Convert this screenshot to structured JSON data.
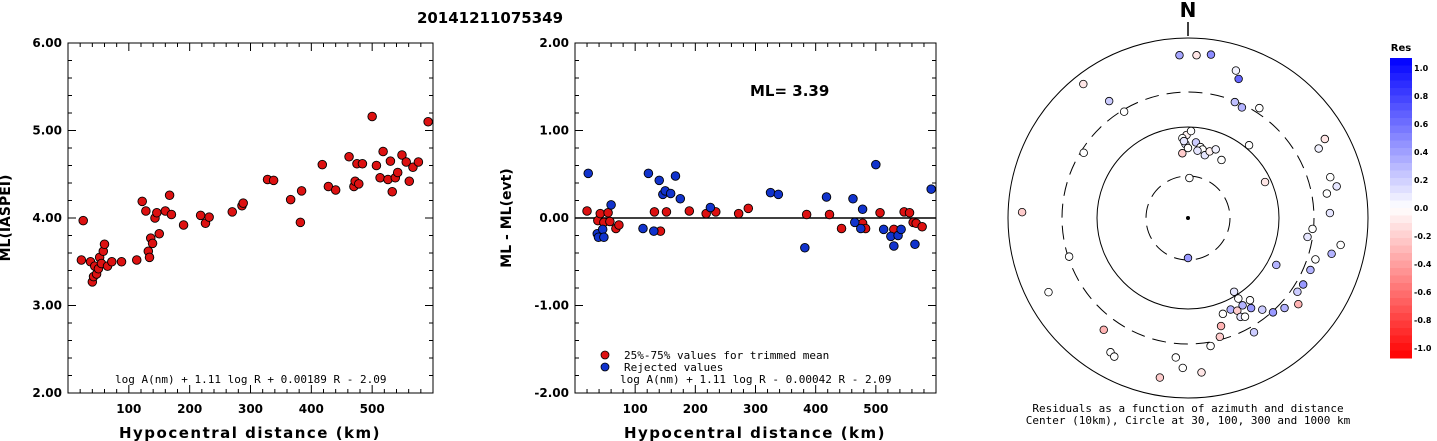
{
  "title": "20141211075349",
  "left_panel": {
    "ylabel": "ML(IASPEI)",
    "xlabel": "Hypocentral distance (km)",
    "formula": "log A(nm) + 1.11 log R + 0.00189 R - 2.09"
  },
  "middle_panel": {
    "ylabel": "ML - ML(evt)",
    "xlabel": "Hypocentral distance (km)",
    "ml_text": "ML= 3.39",
    "legend_trimmed": "25%-75% values for trimmed mean",
    "legend_rejected": "Rejected values",
    "formula": "log A(nm) + 1.11 log R - 0.00042 R - 2.09"
  },
  "polar_panel": {
    "north_label": "N",
    "caption_line1": "Residuals as a function of azimuth and distance",
    "caption_line2": "Center (10km), Circle at 30, 100, 300 and 1000 km"
  },
  "colorbar": {
    "title": "Res",
    "ticks": [
      "1.0",
      "0.8",
      "0.6",
      "0.4",
      "0.2",
      "0.0",
      "-0.2",
      "-0.4",
      "-0.6",
      "-0.8",
      "-1.0"
    ]
  },
  "chart_data": [
    {
      "type": "scatter",
      "title": "20141211075349",
      "xlabel": "Hypocentral distance (km)",
      "ylabel": "ML(IASPEI)",
      "xlim": [
        0,
        600
      ],
      "ylim": [
        2.0,
        6.0
      ],
      "x_ticks": [
        "100",
        "200",
        "300",
        "400",
        "500"
      ],
      "y_ticks": [
        "2.00",
        "3.00",
        "4.00",
        "5.00",
        "6.00"
      ],
      "color": "#dd1111",
      "points": [
        [
          22,
          3.52
        ],
        [
          25,
          3.97
        ],
        [
          37,
          3.5
        ],
        [
          40,
          3.27
        ],
        [
          42,
          3.33
        ],
        [
          44,
          3.45
        ],
        [
          47,
          3.36
        ],
        [
          50,
          3.42
        ],
        [
          52,
          3.55
        ],
        [
          55,
          3.48
        ],
        [
          58,
          3.62
        ],
        [
          60,
          3.7
        ],
        [
          65,
          3.45
        ],
        [
          72,
          3.5
        ],
        [
          88,
          3.5
        ],
        [
          113,
          3.52
        ],
        [
          122,
          4.19
        ],
        [
          128,
          4.08
        ],
        [
          132,
          3.62
        ],
        [
          134,
          3.55
        ],
        [
          136,
          3.77
        ],
        [
          139,
          3.71
        ],
        [
          143,
          4.0
        ],
        [
          146,
          4.06
        ],
        [
          150,
          3.82
        ],
        [
          160,
          4.08
        ],
        [
          167,
          4.26
        ],
        [
          170,
          4.04
        ],
        [
          190,
          3.92
        ],
        [
          218,
          4.03
        ],
        [
          226,
          3.94
        ],
        [
          232,
          4.01
        ],
        [
          270,
          4.07
        ],
        [
          286,
          4.14
        ],
        [
          288,
          4.17
        ],
        [
          328,
          4.44
        ],
        [
          338,
          4.43
        ],
        [
          366,
          4.21
        ],
        [
          382,
          3.95
        ],
        [
          384,
          4.31
        ],
        [
          418,
          4.61
        ],
        [
          428,
          4.36
        ],
        [
          440,
          4.32
        ],
        [
          462,
          4.7
        ],
        [
          470,
          4.36
        ],
        [
          472,
          4.42
        ],
        [
          475,
          4.62
        ],
        [
          478,
          4.39
        ],
        [
          484,
          4.62
        ],
        [
          500,
          5.16
        ],
        [
          507,
          4.6
        ],
        [
          513,
          4.46
        ],
        [
          518,
          4.76
        ],
        [
          526,
          4.44
        ],
        [
          530,
          4.65
        ],
        [
          533,
          4.3
        ],
        [
          538,
          4.46
        ],
        [
          542,
          4.52
        ],
        [
          549,
          4.72
        ],
        [
          556,
          4.64
        ],
        [
          561,
          4.42
        ],
        [
          567,
          4.58
        ],
        [
          576,
          4.64
        ],
        [
          592,
          5.1
        ]
      ]
    },
    {
      "type": "scatter",
      "xlabel": "Hypocentral distance (km)",
      "ylabel": "ML - ML(evt)",
      "xlim": [
        0,
        600
      ],
      "ylim": [
        -2.0,
        2.0
      ],
      "x_ticks": [
        "100",
        "200",
        "300",
        "400",
        "500"
      ],
      "y_ticks": [
        "-2.00",
        "-1.00",
        "0.00",
        "1.00",
        "2.00"
      ],
      "reference_line": 0.0,
      "series": [
        {
          "name": "25%-75% values for trimmed mean",
          "color": "#dd1111",
          "points": [
            [
              20,
              0.08
            ],
            [
              38,
              -0.03
            ],
            [
              42,
              0.05
            ],
            [
              48,
              -0.05
            ],
            [
              55,
              0.06
            ],
            [
              58,
              -0.04
            ],
            [
              68,
              -0.12
            ],
            [
              73,
              -0.08
            ],
            [
              132,
              0.07
            ],
            [
              142,
              -0.15
            ],
            [
              152,
              0.07
            ],
            [
              190,
              0.08
            ],
            [
              218,
              0.05
            ],
            [
              234,
              0.07
            ],
            [
              272,
              0.05
            ],
            [
              288,
              0.11
            ],
            [
              385,
              0.04
            ],
            [
              423,
              0.04
            ],
            [
              443,
              -0.12
            ],
            [
              478,
              -0.06
            ],
            [
              483,
              -0.12
            ],
            [
              507,
              0.06
            ],
            [
              530,
              -0.13
            ],
            [
              547,
              0.07
            ],
            [
              556,
              0.06
            ],
            [
              562,
              -0.05
            ],
            [
              567,
              -0.06
            ],
            [
              577,
              -0.1
            ]
          ]
        },
        {
          "name": "Rejected values",
          "color": "#1133cc",
          "points": [
            [
              22,
              0.51
            ],
            [
              37,
              -0.18
            ],
            [
              39,
              -0.22
            ],
            [
              46,
              -0.13
            ],
            [
              48,
              -0.22
            ],
            [
              60,
              0.15
            ],
            [
              113,
              -0.12
            ],
            [
              122,
              0.51
            ],
            [
              131,
              -0.15
            ],
            [
              140,
              0.43
            ],
            [
              146,
              0.27
            ],
            [
              150,
              0.31
            ],
            [
              159,
              0.28
            ],
            [
              167,
              0.48
            ],
            [
              175,
              0.22
            ],
            [
              225,
              0.12
            ],
            [
              325,
              0.29
            ],
            [
              338,
              0.27
            ],
            [
              382,
              -0.34
            ],
            [
              418,
              0.24
            ],
            [
              462,
              0.22
            ],
            [
              465,
              -0.05
            ],
            [
              475,
              -0.12
            ],
            [
              478,
              0.1
            ],
            [
              500,
              0.61
            ],
            [
              513,
              -0.13
            ],
            [
              525,
              -0.21
            ],
            [
              530,
              -0.32
            ],
            [
              537,
              -0.2
            ],
            [
              542,
              -0.13
            ],
            [
              565,
              -0.3
            ],
            [
              592,
              0.33
            ]
          ]
        }
      ]
    }
  ]
}
